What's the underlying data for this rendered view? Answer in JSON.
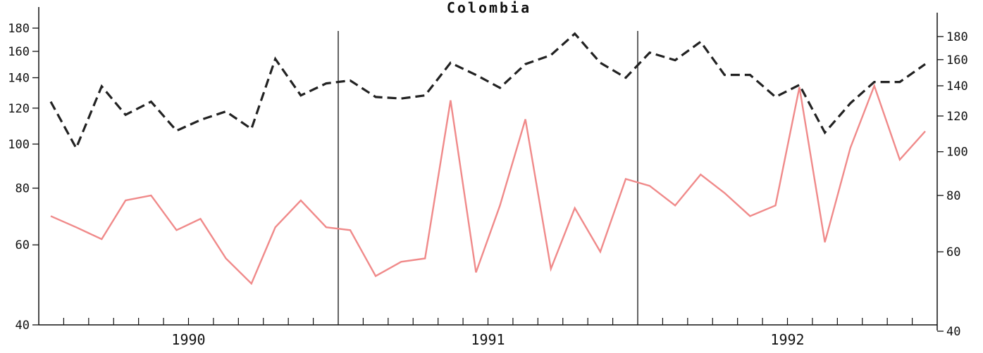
{
  "chart_data": {
    "type": "line",
    "title": "Colombia",
    "x_label": "",
    "y_label": "",
    "scale": "log",
    "x_range": [
      1990.0,
      1993.0
    ],
    "years": [
      "1990",
      "1991",
      "1992"
    ],
    "ylim_left": [
      40,
      190
    ],
    "ylim_right": [
      40,
      190
    ],
    "y_ticks_left": [
      "40",
      "60",
      "80",
      "100",
      "120",
      "140",
      "160",
      "180"
    ],
    "y_ticks_right": [
      "40",
      "60",
      "80",
      "100",
      "120",
      "140",
      "160",
      "180"
    ],
    "grid": false,
    "legend": "none",
    "series": [
      {
        "style": "dashed",
        "color": "#222222",
        "axis": "left",
        "x": [
          1990.04,
          1990.125,
          1990.21,
          1990.29,
          1990.375,
          1990.46,
          1990.54,
          1990.625,
          1990.71,
          1990.79,
          1990.875,
          1990.96,
          1991.04,
          1991.125,
          1991.21,
          1991.29,
          1991.375,
          1991.46,
          1991.54,
          1991.625,
          1991.71,
          1991.79,
          1991.875,
          1991.96,
          1992.04,
          1992.125,
          1992.21,
          1992.29,
          1992.375,
          1992.46,
          1992.54,
          1992.625,
          1992.71,
          1992.79,
          1992.875,
          1992.96
        ],
        "values": [
          124,
          98,
          134,
          116,
          124,
          107,
          113,
          118,
          108,
          154,
          128,
          136,
          138,
          127,
          126,
          128,
          151,
          142,
          133,
          150,
          157,
          175,
          151,
          140,
          159,
          153,
          168,
          142,
          142,
          127,
          135,
          106,
          123,
          137,
          137,
          150
        ]
      },
      {
        "style": "solid",
        "color": "#f08a8a",
        "axis": "right",
        "x": [
          1990.04,
          1990.125,
          1990.21,
          1990.29,
          1990.375,
          1990.46,
          1990.54,
          1990.625,
          1990.71,
          1990.79,
          1990.875,
          1990.96,
          1991.04,
          1991.125,
          1991.21,
          1991.29,
          1991.375,
          1991.46,
          1991.54,
          1991.625,
          1991.71,
          1991.79,
          1991.875,
          1991.96,
          1992.04,
          1992.125,
          1992.21,
          1992.29,
          1992.375,
          1992.46,
          1992.54,
          1992.625,
          1992.71,
          1992.79,
          1992.875,
          1992.96
        ],
        "values": [
          72,
          68,
          64,
          78,
          80,
          67,
          71,
          58,
          51,
          68,
          78,
          68,
          67,
          53,
          57,
          58,
          130,
          54,
          76,
          118,
          55,
          75,
          60,
          87,
          84,
          76,
          89,
          81,
          72,
          76,
          139,
          63,
          102,
          140,
          96,
          111
        ]
      }
    ]
  }
}
